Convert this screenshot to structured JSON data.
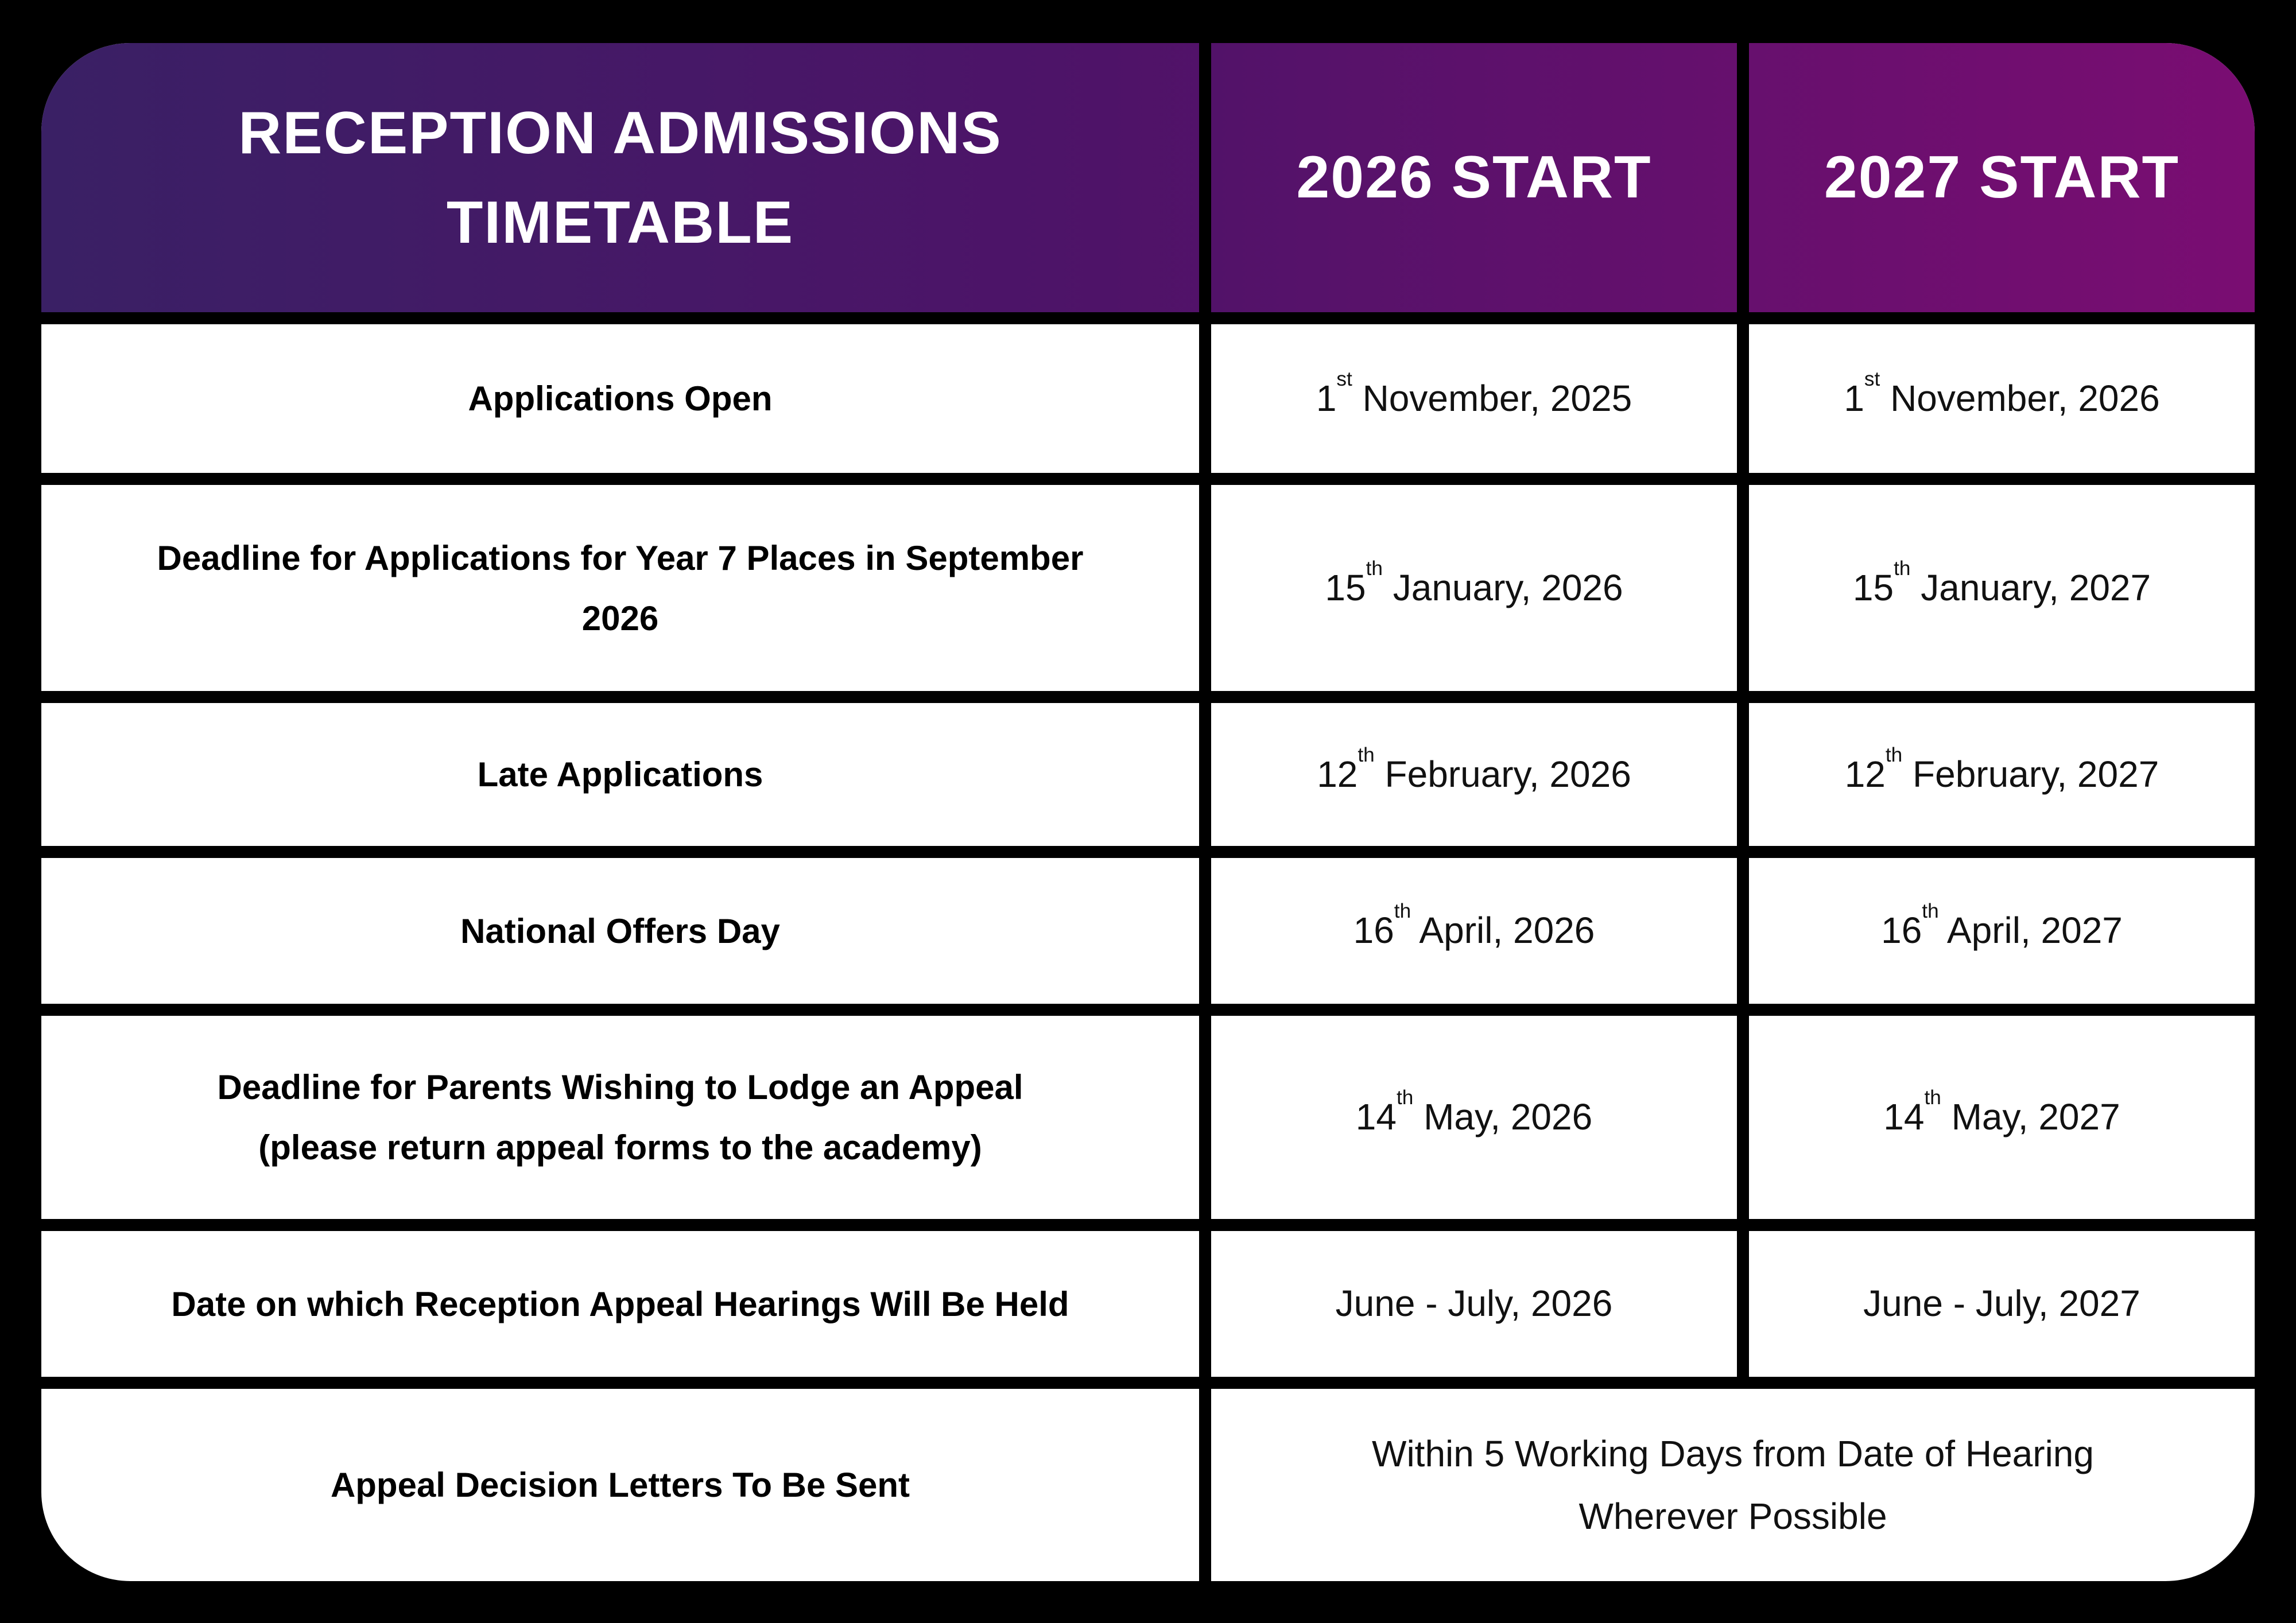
{
  "title_lines": [
    "RECEPTION ADMISSIONS",
    "TIMETABLE"
  ],
  "columns": [
    "2026 START",
    "2027 START"
  ],
  "rows": [
    {
      "label_lines": [
        "Applications Open"
      ],
      "d2026": {
        "pre": "1",
        "sup": "st",
        "post": " November, 2025"
      },
      "d2027": {
        "pre": "1",
        "sup": "st",
        "post": " November, 2026"
      }
    },
    {
      "label_lines": [
        "Deadline for Applications for Year 7 Places in September",
        "2026"
      ],
      "d2026": {
        "pre": "15",
        "sup": "th",
        "post": " January, 2026"
      },
      "d2027": {
        "pre": "15",
        "sup": "th",
        "post": " January, 2027"
      }
    },
    {
      "label_lines": [
        "Late Applications"
      ],
      "d2026": {
        "pre": "12",
        "sup": "th",
        "post": " February, 2026"
      },
      "d2027": {
        "pre": "12",
        "sup": "th",
        "post": " February, 2027"
      }
    },
    {
      "label_lines": [
        "National Offers Day"
      ],
      "d2026": {
        "pre": "16",
        "sup": "th",
        "post": " April, 2026"
      },
      "d2027": {
        "pre": "16",
        "sup": "th",
        "post": " April, 2027"
      }
    },
    {
      "label_lines": [
        "Deadline for Parents Wishing to Lodge an Appeal",
        "(please return appeal forms to the academy)"
      ],
      "d2026": {
        "pre": "14",
        "sup": "th",
        "post": " May, 2026"
      },
      "d2027": {
        "pre": "14",
        "sup": "th",
        "post": " May, 2027"
      }
    },
    {
      "label_lines": [
        "Date on which Reception Appeal Hearings Will Be Held"
      ],
      "d2026": {
        "pre": "June - July, 2026",
        "sup": "",
        "post": ""
      },
      "d2027": {
        "pre": "June - July, 2027",
        "sup": "",
        "post": ""
      }
    },
    {
      "label_lines": [
        "Appeal Decision Letters To Be Sent"
      ],
      "merged_lines": [
        "Within 5 Working Days from Date of Hearing",
        "Wherever Possible"
      ]
    }
  ],
  "colors": {
    "background": "#000000",
    "cell_background": "#ffffff",
    "gradient_start": "#3a2065",
    "gradient_mid": "#4e1368",
    "gradient_end": "#7a0d72",
    "header_text": "#ffffff",
    "body_text": "#111111"
  }
}
